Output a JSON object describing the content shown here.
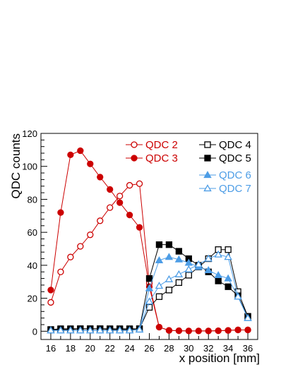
{
  "chart_data": {
    "type": "line",
    "title": "",
    "xlabel": "x position  [mm]",
    "ylabel": "QDC counts",
    "xlim": [
      15,
      37
    ],
    "ylim": [
      -5,
      120
    ],
    "x_ticks": [
      16,
      18,
      20,
      22,
      24,
      26,
      28,
      30,
      32,
      34,
      36
    ],
    "y_ticks": [
      0,
      20,
      40,
      60,
      80,
      100,
      120
    ],
    "grid": false,
    "legend": "top-right",
    "x": [
      16,
      17,
      18,
      19,
      20,
      21,
      22,
      23,
      24,
      25,
      26,
      27,
      28,
      29,
      30,
      31,
      32,
      33,
      34,
      35,
      36
    ],
    "series": [
      {
        "name": "QDC 2",
        "color": "#cc0000",
        "marker": "open-circle",
        "values": [
          17.5,
          36,
          45,
          51.5,
          58.5,
          67,
          75,
          82,
          88.5,
          89.5,
          29,
          2.5,
          0.5,
          0.3,
          0.2,
          0.2,
          0.2,
          0.3,
          0.5,
          0.8,
          0.8
        ]
      },
      {
        "name": "QDC 3",
        "color": "#cc0000",
        "marker": "filled-circle",
        "values": [
          25,
          72,
          107,
          109.5,
          101.5,
          93.5,
          86,
          78,
          70.5,
          63,
          27,
          2.5,
          0.5,
          0.3,
          0.2,
          0.2,
          0.2,
          0.3,
          0.5,
          0.8,
          0.8
        ]
      },
      {
        "name": "QDC 4",
        "color": "#000000",
        "marker": "open-square",
        "values": [
          1,
          1,
          1,
          1.5,
          1.5,
          1.5,
          1,
          1,
          1,
          1.5,
          14.5,
          21,
          25,
          29.5,
          34,
          39,
          44,
          49.5,
          49.5,
          24,
          9
        ]
      },
      {
        "name": "QDC 5",
        "color": "#000000",
        "marker": "filled-square",
        "values": [
          1,
          1.5,
          1.5,
          1.5,
          1.5,
          1.5,
          1.5,
          1.5,
          1.5,
          1.5,
          32,
          52.5,
          52.5,
          48.5,
          44,
          40,
          36,
          30.5,
          27,
          21.5,
          9
        ]
      },
      {
        "name": "QDC 6",
        "color": "#4d9de6",
        "marker": "filled-triangle",
        "values": [
          0.5,
          0.5,
          0.5,
          0.5,
          0.5,
          0.5,
          0.5,
          0.5,
          0.5,
          1,
          26,
          43,
          45,
          43.5,
          41.5,
          39,
          37,
          34,
          32,
          21,
          8
        ]
      },
      {
        "name": "QDC 7",
        "color": "#4d9de6",
        "marker": "open-triangle",
        "values": [
          0.5,
          0.5,
          0.5,
          0.5,
          0.5,
          0.5,
          0.5,
          0.5,
          0.5,
          1,
          18,
          27.5,
          31.5,
          34.5,
          37.5,
          40.5,
          44,
          46.5,
          45,
          21,
          8
        ]
      }
    ]
  }
}
